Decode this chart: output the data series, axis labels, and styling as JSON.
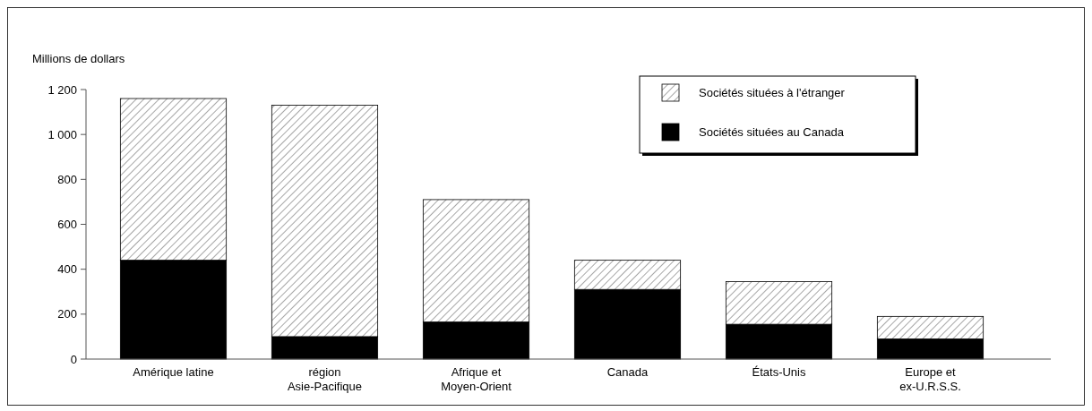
{
  "chart_data": {
    "type": "bar",
    "stacked": true,
    "ylabel": "Millions de dollars",
    "categories": [
      "Amérique latine",
      "région Asie-Pacifique",
      "Afrique et Moyen-Orient",
      "Canada",
      "États-Unis",
      "Europe et ex-U.R.S.S."
    ],
    "series": [
      {
        "name": "Sociétés situées au Canada",
        "color": "#000000",
        "values": [
          440,
          100,
          165,
          310,
          155,
          90
        ]
      },
      {
        "name": "Sociétés situées à l'étranger",
        "color": "#000000",
        "values": [
          720,
          1030,
          545,
          130,
          190,
          100
        ]
      }
    ],
    "ylim": [
      0,
      1200
    ],
    "yticks": [
      0,
      200,
      400,
      600,
      800,
      {
        "value": 1000,
        "label": "1 000"
      },
      {
        "value": 1200,
        "label": "1 200"
      }
    ],
    "legend": "top right",
    "grid": false
  }
}
